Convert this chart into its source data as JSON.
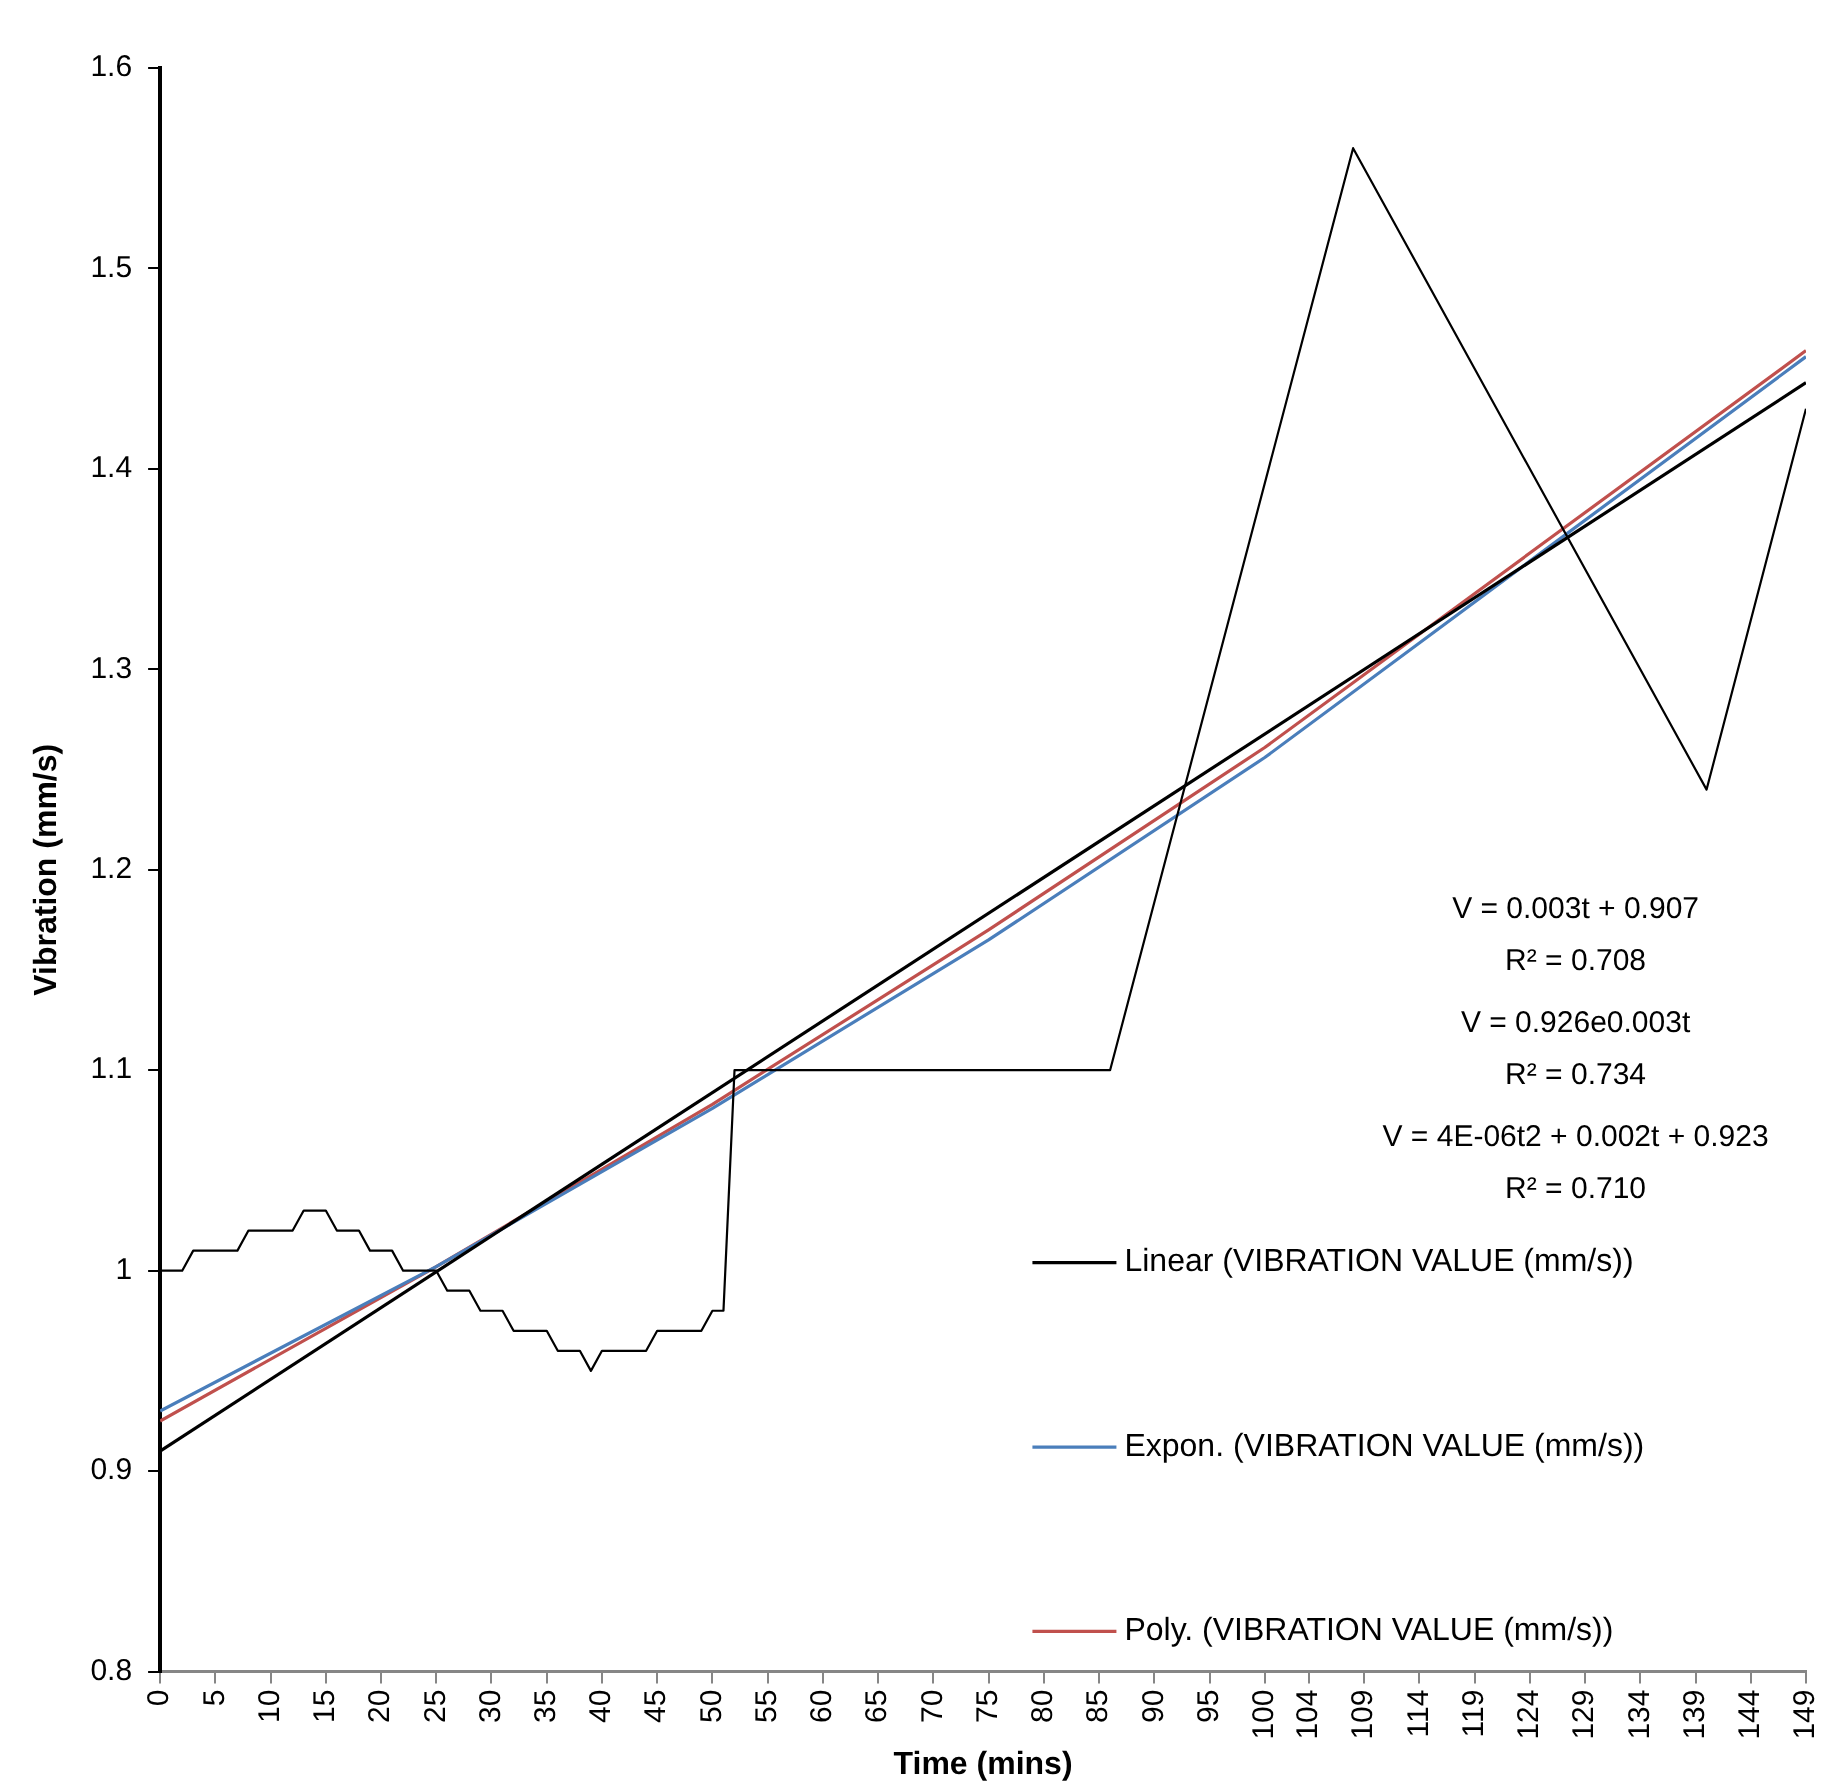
{
  "chart_data": {
    "type": "line",
    "xlabel": "Time (mins)",
    "ylabel": "Vibration (mm/s)",
    "xlim": [
      0,
      149
    ],
    "xticks": [
      0,
      5,
      10,
      15,
      20,
      25,
      30,
      35,
      40,
      45,
      50,
      55,
      60,
      65,
      70,
      75,
      80,
      85,
      90,
      95,
      100,
      104,
      109,
      114,
      119,
      124,
      129,
      134,
      139,
      144,
      149
    ],
    "ylim": [
      0.8,
      1.6
    ],
    "yticks": [
      0.8,
      0.9,
      1,
      1.1,
      1.2,
      1.3,
      1.4,
      1.5,
      1.6
    ],
    "grid": false,
    "legend": "right",
    "marker": "none",
    "line_style": "solid",
    "series": [
      {
        "color": "#000000",
        "x": [
          0,
          2,
          3,
          7,
          8,
          12,
          13,
          15,
          16,
          18,
          19,
          21,
          22,
          25,
          26,
          28,
          29,
          31,
          32,
          35,
          36,
          38,
          39,
          40,
          44,
          45,
          49,
          50,
          51,
          52,
          86,
          108,
          140,
          149
        ],
        "values": [
          1.0,
          1.0,
          1.01,
          1.01,
          1.02,
          1.02,
          1.03,
          1.03,
          1.02,
          1.02,
          1.01,
          1.01,
          1.0,
          1.0,
          0.99,
          0.99,
          0.98,
          0.98,
          0.97,
          0.97,
          0.96,
          0.96,
          0.95,
          0.96,
          0.96,
          0.97,
          0.97,
          0.98,
          0.98,
          1.1,
          1.1,
          1.56,
          1.24,
          1.43
        ]
      },
      {
        "type": "line",
        "name": "Linear (VIBRATION VALUE (mm/s))",
        "color": "#000000",
        "x": [
          0,
          149
        ],
        "values": [
          0.91,
          1.443
        ]
      },
      {
        "type": "line",
        "name": "Expon. (VIBRATION VALUE (mm/s))",
        "color": "#4a7ebb",
        "x": [
          0,
          25,
          50,
          75,
          100,
          124,
          149
        ],
        "values": [
          0.93,
          1.002,
          1.081,
          1.165,
          1.256,
          1.354,
          1.456
        ]
      },
      {
        "type": "line",
        "name": "Poly. (VIBRATION VALUE (mm/s))",
        "color": "#c0504d",
        "x": [
          0,
          25,
          50,
          75,
          100,
          124,
          149
        ],
        "values": [
          0.925,
          1.002,
          1.083,
          1.17,
          1.261,
          1.358,
          1.459
        ]
      }
    ],
    "annotations": [
      "V = 0.003t + 0.907",
      "R² = 0.708",
      "V = 0.926e0.003t",
      "R² = 0.734",
      "V = 4E-06t2 + 0.002t + 0.923",
      "R² = 0.710"
    ]
  }
}
